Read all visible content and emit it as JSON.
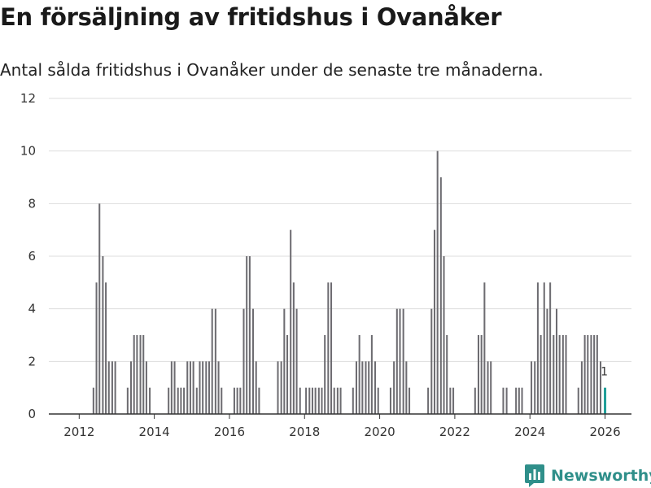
{
  "title": "En försäljning av fritidshus i Ovanåker",
  "subtitle": "Antal sålda fritidshus i Ovanåker under de senaste tre månaderna.",
  "brand": "Newsworthy",
  "colors": {
    "bar": "#6d6c71",
    "highlight": "#1f9e98",
    "grid": "#dddddd",
    "axis": "#333333",
    "brand": "#2f8f8a"
  },
  "chart_data": {
    "type": "bar",
    "title": "En försäljning av fritidshus i Ovanåker",
    "subtitle": "Antal sålda fritidshus i Ovanåker under de senaste tre månaderna.",
    "xlabel": "",
    "ylabel": "",
    "ylim": [
      0,
      12
    ],
    "yticks": [
      0,
      2,
      4,
      6,
      8,
      10,
      12
    ],
    "xlim": [
      2011.3,
      2026.4
    ],
    "xticks": [
      2012,
      2014,
      2016,
      2018,
      2020,
      2022,
      2024,
      2026
    ],
    "grid": true,
    "highlight": {
      "x": 2026.0,
      "value": 1,
      "label": "1"
    },
    "x": [
      2012.38,
      2012.46,
      2012.54,
      2012.63,
      2012.71,
      2012.79,
      2012.88,
      2012.96,
      2013.29,
      2013.38,
      2013.46,
      2013.54,
      2013.63,
      2013.71,
      2013.79,
      2013.88,
      2014.38,
      2014.46,
      2014.54,
      2014.63,
      2014.71,
      2014.79,
      2014.88,
      2014.96,
      2015.04,
      2015.13,
      2015.21,
      2015.29,
      2015.38,
      2015.46,
      2015.54,
      2015.63,
      2015.71,
      2015.79,
      2016.13,
      2016.21,
      2016.29,
      2016.38,
      2016.46,
      2016.54,
      2016.63,
      2016.71,
      2016.79,
      2017.29,
      2017.38,
      2017.46,
      2017.54,
      2017.63,
      2017.71,
      2017.79,
      2017.88,
      2018.04,
      2018.13,
      2018.21,
      2018.29,
      2018.38,
      2018.46,
      2018.54,
      2018.63,
      2018.71,
      2018.79,
      2018.88,
      2018.96,
      2019.29,
      2019.38,
      2019.46,
      2019.54,
      2019.63,
      2019.71,
      2019.79,
      2019.88,
      2019.96,
      2020.29,
      2020.38,
      2020.46,
      2020.54,
      2020.63,
      2020.71,
      2020.79,
      2021.29,
      2021.38,
      2021.46,
      2021.54,
      2021.63,
      2021.71,
      2021.79,
      2021.88,
      2021.96,
      2022.54,
      2022.63,
      2022.71,
      2022.79,
      2022.88,
      2022.96,
      2023.29,
      2023.38,
      2023.63,
      2023.71,
      2023.79,
      2024.04,
      2024.13,
      2024.21,
      2024.29,
      2024.38,
      2024.46,
      2024.54,
      2024.63,
      2024.71,
      2024.79,
      2024.88,
      2024.96,
      2025.29,
      2025.38,
      2025.46,
      2025.54,
      2025.63,
      2025.71,
      2025.79,
      2025.88
    ],
    "values": [
      1,
      5,
      8,
      6,
      5,
      2,
      2,
      2,
      1,
      2,
      3,
      3,
      3,
      3,
      2,
      1,
      1,
      2,
      2,
      1,
      1,
      1,
      2,
      2,
      2,
      1,
      2,
      2,
      2,
      2,
      4,
      4,
      2,
      1,
      1,
      1,
      1,
      4,
      6,
      6,
      4,
      2,
      1,
      2,
      2,
      4,
      3,
      7,
      5,
      4,
      1,
      1,
      1,
      1,
      1,
      1,
      1,
      3,
      5,
      5,
      1,
      1,
      1,
      1,
      2,
      3,
      2,
      2,
      2,
      3,
      2,
      1,
      1,
      2,
      4,
      4,
      4,
      2,
      1,
      1,
      4,
      7,
      10,
      9,
      6,
      3,
      1,
      1,
      1,
      3,
      3,
      5,
      2,
      2,
      1,
      1,
      1,
      1,
      1,
      2,
      2,
      5,
      3,
      5,
      4,
      5,
      3,
      4,
      3,
      3,
      3,
      1,
      2,
      3,
      3,
      3,
      3,
      3,
      2
    ]
  }
}
